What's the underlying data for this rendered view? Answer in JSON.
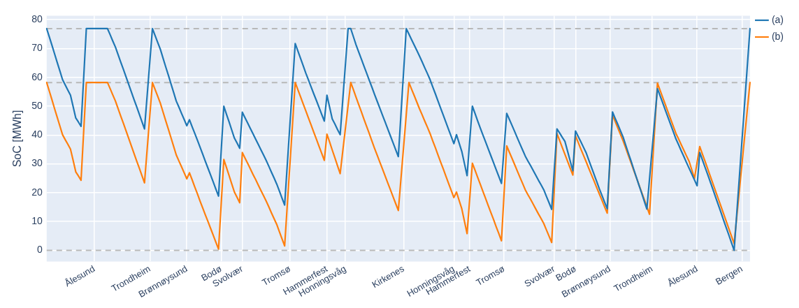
{
  "chart_data": {
    "type": "line",
    "ylabel": "SoC [MWh]",
    "categories": [
      null,
      null,
      null,
      null,
      null,
      null,
      null,
      null,
      null,
      null,
      null,
      null,
      null,
      null,
      null,
      null,
      null,
      null,
      "Ålesund",
      null,
      null,
      null,
      null,
      null,
      null,
      null,
      null,
      null,
      null,
      null,
      null,
      null,
      null,
      null,
      null,
      null,
      null,
      null,
      null,
      "Trondheim",
      null,
      null,
      null,
      null,
      null,
      null,
      null,
      null,
      null,
      null,
      null,
      null,
      null,
      "Brønnøysund",
      null,
      null,
      null,
      null,
      null,
      null,
      null,
      null,
      null,
      null,
      null,
      null,
      "Bodø",
      null,
      null,
      null,
      null,
      null,
      null,
      null,
      "Svolvær",
      null,
      null,
      null,
      null,
      null,
      null,
      null,
      null,
      null,
      null,
      null,
      null,
      null,
      null,
      null,
      null,
      null,
      "Tromsø",
      null,
      null,
      null,
      null,
      null,
      null,
      null,
      null,
      null,
      null,
      null,
      null,
      null,
      "Hammerfest",
      null,
      null,
      null,
      null,
      null,
      null,
      "Honningsvåg",
      null,
      null,
      null,
      null,
      null,
      null,
      null,
      null,
      null,
      null,
      null,
      null,
      null,
      null,
      null,
      null,
      null,
      null,
      null,
      null,
      null,
      "Kirkenes",
      null,
      null,
      null,
      null,
      null,
      null,
      null,
      null,
      null,
      null,
      null,
      null,
      null,
      null,
      null,
      null,
      null,
      null,
      "Honningsvåg",
      null,
      null,
      null,
      null,
      null,
      "Hammerfest",
      null,
      null,
      null,
      null,
      null,
      null,
      null,
      null,
      null,
      null,
      null,
      null,
      "Tromsø",
      null,
      null,
      null,
      null,
      null,
      null,
      null,
      null,
      null,
      null,
      null,
      null,
      null,
      null,
      null,
      null,
      null,
      null,
      "Svolvær",
      null,
      null,
      null,
      null,
      null,
      null,
      null,
      "Bodø",
      null,
      null,
      null,
      null,
      null,
      null,
      null,
      null,
      null,
      null,
      null,
      null,
      "Brønnøysund",
      null,
      null,
      null,
      null,
      null,
      null,
      null,
      null,
      null,
      null,
      null,
      null,
      null,
      null,
      null,
      "Trondheim",
      null,
      null,
      null,
      null,
      null,
      null,
      null,
      null,
      null,
      null,
      null,
      null,
      null,
      null,
      null,
      null,
      "Ålesund",
      null,
      null,
      null,
      null,
      null,
      null,
      null,
      null,
      null,
      null,
      null,
      null,
      null,
      null,
      null,
      null,
      "Bergen",
      null,
      null,
      null
    ],
    "ylim": [
      -3.9,
      81.4
    ],
    "yticks": [
      0,
      10,
      20,
      30,
      40,
      50,
      60,
      70,
      80
    ],
    "grid": true,
    "legend": "top right",
    "line_style": "solid",
    "ref_lines": [
      {
        "axis": "y",
        "value": 76.9,
        "color": "#b8b8b8",
        "line_style": "dashed"
      },
      {
        "axis": "y",
        "value": 58.2,
        "color": "#b8b8b8",
        "line_style": "dashed"
      },
      {
        "axis": "y",
        "value": 0,
        "color": "#b8b8b8",
        "line_style": "dashed"
      }
    ],
    "series": [
      {
        "name": "(a)",
        "color": "#1f77b4",
        "values": [
          76.9,
          74.0,
          71.1,
          68.1,
          65.1,
          62.2,
          59.2,
          57.4,
          55.6,
          53.8,
          49.9,
          45.9,
          44.5,
          43.0,
          60.0,
          76.9,
          76.9,
          76.9,
          76.9,
          76.9,
          76.9,
          76.9,
          76.9,
          76.9,
          74.8,
          72.6,
          70.5,
          67.9,
          65.3,
          62.8,
          60.2,
          57.6,
          55.0,
          52.4,
          49.9,
          47.3,
          44.7,
          42.1,
          53.7,
          65.3,
          76.9,
          74.5,
          72.1,
          69.7,
          66.7,
          63.7,
          60.8,
          57.8,
          54.8,
          51.8,
          49.7,
          47.5,
          45.4,
          43.2,
          45.3,
          42.9,
          40.6,
          38.2,
          35.8,
          33.4,
          30.9,
          28.5,
          26.1,
          23.7,
          21.2,
          18.8,
          34.4,
          50.0,
          47.2,
          44.5,
          41.7,
          38.9,
          37.2,
          35.4,
          47.9,
          46.0,
          44.2,
          42.3,
          40.5,
          38.6,
          36.8,
          34.9,
          33.1,
          31.2,
          29.2,
          27.1,
          25.1,
          23.0,
          20.6,
          18.1,
          15.7,
          29.7,
          43.7,
          57.7,
          71.7,
          69.2,
          66.6,
          64.1,
          61.5,
          59.1,
          56.7,
          54.3,
          52.0,
          49.6,
          47.2,
          44.8,
          53.8,
          49.7,
          45.6,
          43.8,
          41.9,
          40.1,
          52.4,
          64.6,
          76.9,
          76.9,
          74.1,
          71.3,
          68.8,
          66.4,
          63.9,
          61.5,
          59.0,
          56.6,
          54.1,
          51.7,
          49.3,
          46.9,
          44.5,
          42.1,
          39.7,
          37.3,
          34.9,
          32.5,
          47.3,
          62.1,
          76.9,
          75.0,
          73.1,
          71.2,
          69.3,
          67.4,
          65.4,
          63.3,
          61.3,
          59.2,
          56.7,
          54.3,
          51.8,
          49.3,
          46.9,
          44.4,
          41.9,
          39.5,
          37.0,
          40.1,
          37.2,
          34.3,
          30.1,
          25.9,
          38.0,
          50.0,
          47.5,
          44.9,
          42.4,
          40.0,
          37.6,
          35.2,
          32.8,
          30.4,
          28.0,
          25.6,
          23.2,
          35.4,
          47.5,
          45.4,
          43.3,
          41.2,
          39.0,
          36.9,
          34.8,
          32.7,
          31.0,
          29.4,
          27.7,
          26.0,
          24.3,
          22.7,
          21.0,
          18.7,
          16.5,
          14.2,
          28.2,
          42.1,
          40.7,
          39.2,
          37.8,
          34.4,
          31.0,
          27.6,
          41.4,
          39.5,
          37.7,
          35.8,
          33.9,
          31.4,
          28.9,
          26.4,
          23.9,
          21.4,
          19.1,
          16.7,
          14.4,
          31.2,
          48.0,
          45.8,
          43.7,
          41.5,
          39.3,
          36.5,
          33.7,
          31.0,
          28.2,
          25.4,
          22.6,
          19.9,
          17.1,
          14.3,
          24.8,
          35.2,
          45.7,
          56.1,
          53.6,
          51.1,
          48.6,
          46.1,
          43.6,
          41.1,
          38.6,
          36.6,
          34.5,
          32.5,
          30.4,
          28.4,
          26.4,
          24.4,
          22.4,
          33.9,
          31.4,
          28.8,
          26.3,
          23.7,
          21.1,
          18.4,
          15.8,
          13.2,
          10.5,
          7.9,
          5.3,
          2.6,
          0,
          12.8,
          25.6,
          38.5,
          51.3,
          64.1,
          76.9
        ]
      },
      {
        "name": "(b)",
        "color": "#ff7f0e",
        "values": [
          58.2,
          55.2,
          52.2,
          49.1,
          46.1,
          43.1,
          40.1,
          38.4,
          36.8,
          35.1,
          31.2,
          27.2,
          25.8,
          24.3,
          41.3,
          58.2,
          58.2,
          58.2,
          58.2,
          58.2,
          58.2,
          58.2,
          58.2,
          58.2,
          56.1,
          53.9,
          51.8,
          49.2,
          46.6,
          44.1,
          41.5,
          38.9,
          36.3,
          33.7,
          31.1,
          28.6,
          26.0,
          23.4,
          35.0,
          46.6,
          58.2,
          55.8,
          53.4,
          51.0,
          48.0,
          45.0,
          42.1,
          39.1,
          36.1,
          33.1,
          31.0,
          29.0,
          26.9,
          24.8,
          26.9,
          24.5,
          22.0,
          19.6,
          17.1,
          14.7,
          12.3,
          10.0,
          7.6,
          5.2,
          2.8,
          0.4,
          16.0,
          31.5,
          28.7,
          25.9,
          23.0,
          20.2,
          18.4,
          16.5,
          33.9,
          32.0,
          30.2,
          28.3,
          26.4,
          24.6,
          22.7,
          20.8,
          19.0,
          17.1,
          15.1,
          13.0,
          11.0,
          9.0,
          6.5,
          4.0,
          1.5,
          15.7,
          29.9,
          44.0,
          58.2,
          55.7,
          53.3,
          50.8,
          48.4,
          45.9,
          43.5,
          41.0,
          38.6,
          36.1,
          33.7,
          31.2,
          40.3,
          37.6,
          34.8,
          32.1,
          29.3,
          26.6,
          34.5,
          42.4,
          50.3,
          58.2,
          55.7,
          53.1,
          50.6,
          48.1,
          45.5,
          43.0,
          40.5,
          37.9,
          35.4,
          33.0,
          30.6,
          28.2,
          25.8,
          23.4,
          21.0,
          18.6,
          16.2,
          13.8,
          24.9,
          36.0,
          47.1,
          58.2,
          55.9,
          53.7,
          51.4,
          49.1,
          47.0,
          44.8,
          42.7,
          40.5,
          38.0,
          35.6,
          33.1,
          30.6,
          28.2,
          25.7,
          23.2,
          20.8,
          18.3,
          20.2,
          17.3,
          14.4,
          10.1,
          5.8,
          18.0,
          30.2,
          27.8,
          25.3,
          22.9,
          20.4,
          18.0,
          15.5,
          13.1,
          10.7,
          8.2,
          5.8,
          3.3,
          19.8,
          36.2,
          34.0,
          31.9,
          29.7,
          27.5,
          25.3,
          23.2,
          21.0,
          19.3,
          17.7,
          16.0,
          14.3,
          12.6,
          11.0,
          9.3,
          7.1,
          4.9,
          2.7,
          21.6,
          40.5,
          38.1,
          35.7,
          33.3,
          30.9,
          28.5,
          26.1,
          39.7,
          37.5,
          35.2,
          33.0,
          30.8,
          28.5,
          26.3,
          24.1,
          21.8,
          19.6,
          17.4,
          15.1,
          12.9,
          29.9,
          46.9,
          44.7,
          42.5,
          40.2,
          38.0,
          35.5,
          32.9,
          30.4,
          27.8,
          25.3,
          22.8,
          20.2,
          17.7,
          15.1,
          12.5,
          27.7,
          42.8,
          58.0,
          55.5,
          53.0,
          50.5,
          48.0,
          45.5,
          43.0,
          40.5,
          38.6,
          36.6,
          34.7,
          32.7,
          30.8,
          27.9,
          24.9,
          30.5,
          36.0,
          33.4,
          30.9,
          28.3,
          25.7,
          23.1,
          20.5,
          17.9,
          15.3,
          12.7,
          10.1,
          7.5,
          4.9,
          2.3,
          11.6,
          20.9,
          30.3,
          39.6,
          48.9,
          58.2
        ]
      }
    ]
  }
}
